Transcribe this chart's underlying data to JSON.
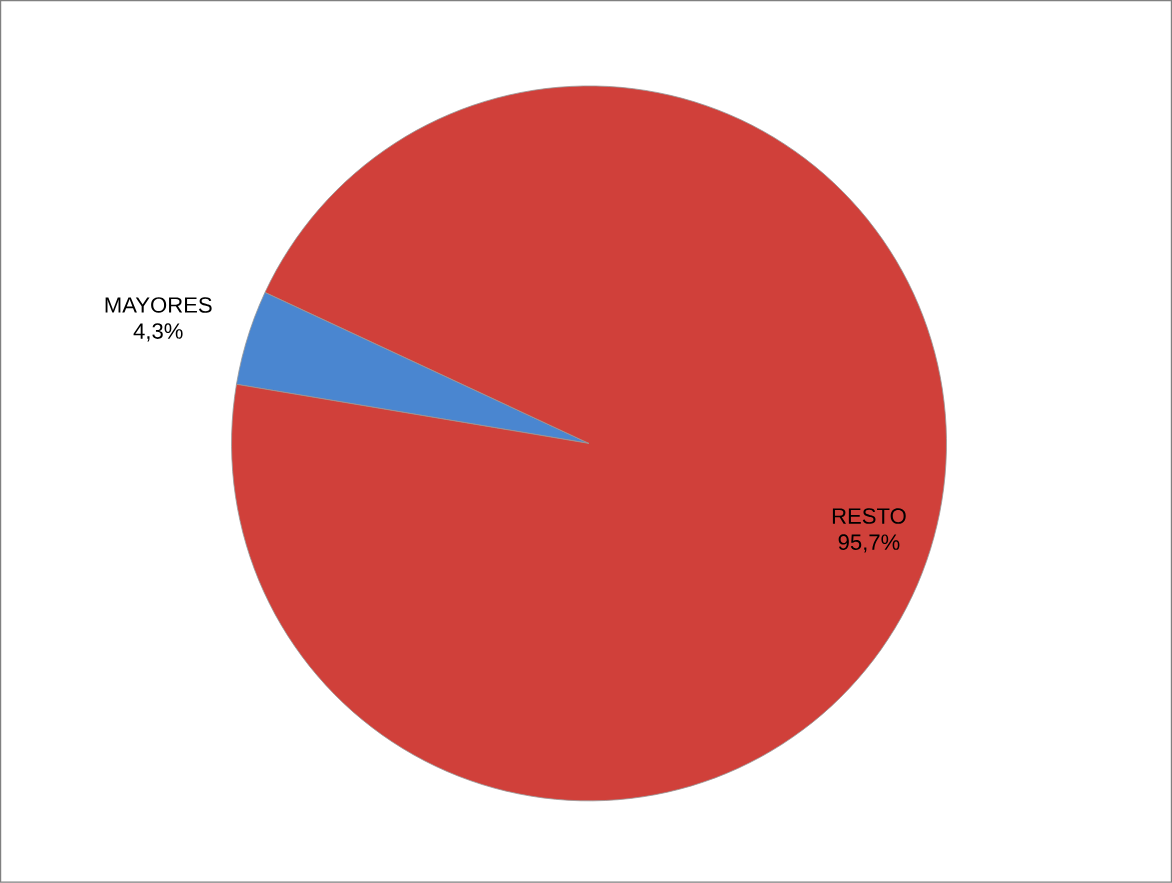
{
  "chart_data": {
    "type": "pie",
    "categories": [
      "MAYORES",
      "RESTO"
    ],
    "values": [
      4.3,
      95.7
    ],
    "colors": [
      "#4a86d0",
      "#d0403a"
    ],
    "value_labels": [
      "4,3%",
      "95,7%"
    ]
  }
}
